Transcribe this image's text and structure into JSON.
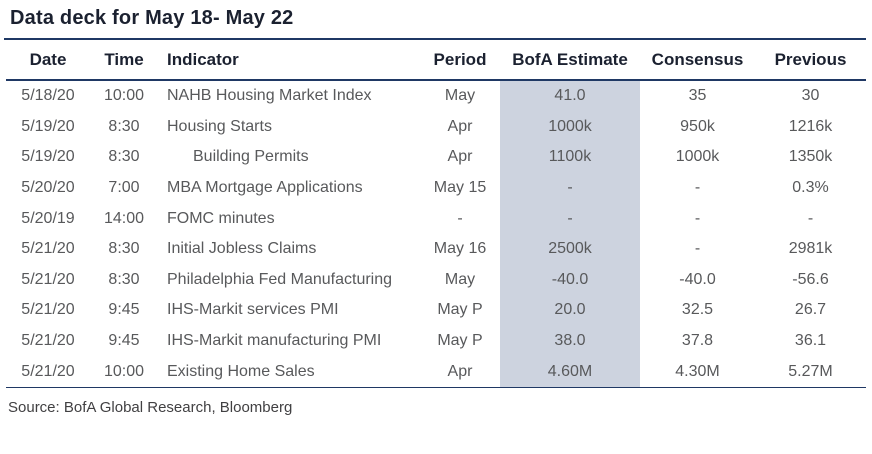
{
  "title": "Data deck for May 18- May 22",
  "source": "Source: BofA Global Research, Bloomberg",
  "colors": {
    "rule_navy": "#1f3864",
    "estimate_column_shade": "#cdd3df",
    "header_text": "#1b2130",
    "body_text": "#58595b",
    "source_text": "#414042"
  },
  "table": {
    "columns": [
      {
        "key": "date",
        "label": "Date"
      },
      {
        "key": "time",
        "label": "Time"
      },
      {
        "key": "indicator",
        "label": "Indicator"
      },
      {
        "key": "period",
        "label": "Period"
      },
      {
        "key": "bofa",
        "label": "BofA Estimate"
      },
      {
        "key": "consensus",
        "label": "Consensus"
      },
      {
        "key": "previous",
        "label": "Previous"
      }
    ],
    "rows": [
      {
        "date": "5/18/20",
        "time": "10:00",
        "indicator": "NAHB Housing Market Index",
        "indent": false,
        "period": "May",
        "bofa": "41.0",
        "consensus": "35",
        "previous": "30"
      },
      {
        "date": "5/19/20",
        "time": "8:30",
        "indicator": "Housing Starts",
        "indent": false,
        "period": "Apr",
        "bofa": "1000k",
        "consensus": "950k",
        "previous": "1216k"
      },
      {
        "date": "5/19/20",
        "time": "8:30",
        "indicator": "Building Permits",
        "indent": true,
        "period": "Apr",
        "bofa": "1100k",
        "consensus": "1000k",
        "previous": "1350k"
      },
      {
        "date": "5/20/20",
        "time": "7:00",
        "indicator": "MBA Mortgage Applications",
        "indent": false,
        "period": "May 15",
        "bofa": "-",
        "consensus": "-",
        "previous": "0.3%"
      },
      {
        "date": "5/20/19",
        "time": "14:00",
        "indicator": "FOMC minutes",
        "indent": false,
        "period": "-",
        "bofa": "-",
        "consensus": "-",
        "previous": "-"
      },
      {
        "date": "5/21/20",
        "time": "8:30",
        "indicator": "Initial Jobless Claims",
        "indent": false,
        "period": "May 16",
        "bofa": "2500k",
        "consensus": "-",
        "previous": "2981k"
      },
      {
        "date": "5/21/20",
        "time": "8:30",
        "indicator": "Philadelphia Fed Manufacturing",
        "indent": false,
        "period": "May",
        "bofa": "-40.0",
        "consensus": "-40.0",
        "previous": "-56.6"
      },
      {
        "date": "5/21/20",
        "time": "9:45",
        "indicator": "IHS-Markit services PMI",
        "indent": false,
        "period": "May P",
        "bofa": "20.0",
        "consensus": "32.5",
        "previous": "26.7"
      },
      {
        "date": "5/21/20",
        "time": "9:45",
        "indicator": "IHS-Markit manufacturing PMI",
        "indent": false,
        "period": "May P",
        "bofa": "38.0",
        "consensus": "37.8",
        "previous": "36.1"
      },
      {
        "date": "5/21/20",
        "time": "10:00",
        "indicator": "Existing Home Sales",
        "indent": false,
        "period": "Apr",
        "bofa": "4.60M",
        "consensus": "4.30M",
        "previous": "5.27M"
      }
    ]
  }
}
